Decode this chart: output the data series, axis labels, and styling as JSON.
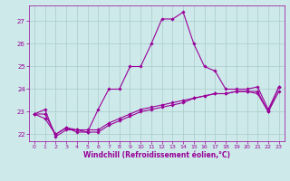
{
  "xlabel": "Windchill (Refroidissement éolien,°C)",
  "ylabel": "",
  "xlim": [
    -0.5,
    23.5
  ],
  "ylim": [
    21.7,
    27.7
  ],
  "yticks": [
    22,
    23,
    24,
    25,
    26,
    27
  ],
  "xticks": [
    0,
    1,
    2,
    3,
    4,
    5,
    6,
    7,
    8,
    9,
    10,
    11,
    12,
    13,
    14,
    15,
    16,
    17,
    18,
    19,
    20,
    21,
    22,
    23
  ],
  "bg_color": "#cde9e9",
  "line_color": "#990099",
  "grid_color": "#aacccc",
  "line1_y": [
    22.9,
    23.1,
    21.9,
    22.2,
    22.2,
    22.1,
    23.1,
    24.0,
    24.0,
    25.0,
    25.0,
    26.0,
    27.1,
    27.1,
    27.4,
    26.0,
    25.0,
    24.8,
    24.0,
    24.0,
    24.0,
    24.1,
    23.1,
    24.1
  ],
  "line2_y": [
    22.9,
    22.9,
    22.0,
    22.3,
    22.2,
    22.2,
    22.2,
    22.5,
    22.7,
    22.9,
    23.1,
    23.2,
    23.3,
    23.4,
    23.5,
    23.6,
    23.7,
    23.8,
    23.8,
    23.9,
    23.9,
    23.9,
    23.0,
    24.1
  ],
  "line3_y": [
    22.9,
    22.7,
    22.0,
    22.3,
    22.1,
    22.1,
    22.1,
    22.4,
    22.6,
    22.8,
    23.0,
    23.1,
    23.2,
    23.3,
    23.4,
    23.6,
    23.7,
    23.8,
    23.8,
    23.9,
    23.9,
    23.8,
    23.0,
    23.9
  ]
}
